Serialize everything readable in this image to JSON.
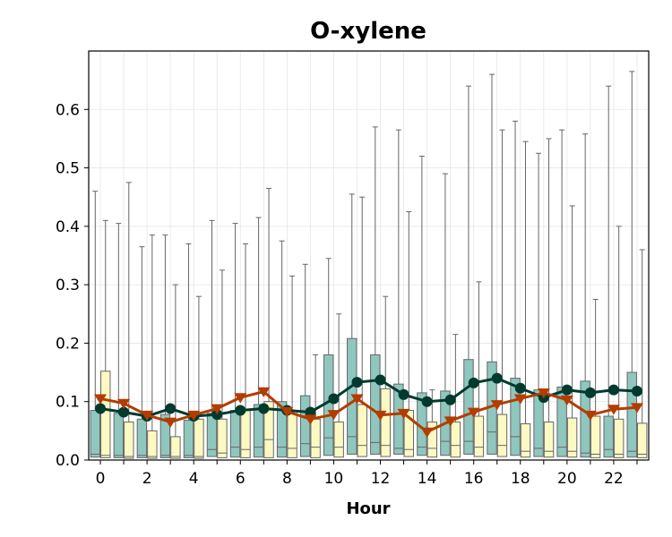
{
  "chart_data": {
    "type": "box+line",
    "title": "O-xylene",
    "xlabel": "Hour",
    "ylabel": "",
    "xlim": [
      -0.5,
      23.5
    ],
    "ylim": [
      0,
      0.7
    ],
    "x_ticks": [
      0,
      2,
      4,
      6,
      8,
      10,
      12,
      14,
      16,
      18,
      20,
      22
    ],
    "x_tick_labels": [
      "0",
      "2",
      "4",
      "6",
      "8",
      "10",
      "12",
      "14",
      "16",
      "18",
      "20",
      "22"
    ],
    "y_ticks": [
      0,
      0.1,
      0.2,
      0.3,
      0.4,
      0.5,
      0.6
    ],
    "y_tick_labels": [
      "0.0",
      "0.1",
      "0.2",
      "0.3",
      "0.4",
      "0.5",
      "0.6"
    ],
    "grid": true,
    "legend": "none",
    "hours": [
      0,
      1,
      2,
      3,
      4,
      5,
      6,
      7,
      8,
      9,
      10,
      11,
      12,
      13,
      14,
      15,
      16,
      17,
      18,
      19,
      20,
      21,
      22,
      23
    ],
    "series": [
      {
        "color": "#8fc7bf",
        "line_color": "#003a2e",
        "marker": "circle",
        "box_q1": [
          0.005,
          0.004,
          0.004,
          0.004,
          0.004,
          0.006,
          0.005,
          0.005,
          0.005,
          0.006,
          0.008,
          0.01,
          0.01,
          0.01,
          0.008,
          0.008,
          0.01,
          0.01,
          0.008,
          0.006,
          0.006,
          0.005,
          0.005,
          0.005
        ],
        "box_median": [
          0.01,
          0.008,
          0.008,
          0.008,
          0.008,
          0.018,
          0.022,
          0.022,
          0.022,
          0.028,
          0.038,
          0.04,
          0.03,
          0.02,
          0.022,
          0.032,
          0.032,
          0.048,
          0.04,
          0.02,
          0.022,
          0.012,
          0.018,
          0.015
        ],
        "box_q3": [
          0.085,
          0.08,
          0.07,
          0.078,
          0.068,
          0.08,
          0.085,
          0.095,
          0.1,
          0.11,
          0.18,
          0.208,
          0.18,
          0.13,
          0.115,
          0.118,
          0.172,
          0.168,
          0.14,
          0.12,
          0.125,
          0.135,
          0.075,
          0.15
        ],
        "whisker_high": [
          0.46,
          0.405,
          0.365,
          0.385,
          0.37,
          0.41,
          0.405,
          0.415,
          0.375,
          0.335,
          0.345,
          0.455,
          0.57,
          0.565,
          0.52,
          0.49,
          0.64,
          0.66,
          0.58,
          0.525,
          0.565,
          0.558,
          0.64,
          0.665
        ],
        "mean": [
          0.088,
          0.082,
          0.075,
          0.088,
          0.075,
          0.078,
          0.085,
          0.088,
          0.085,
          0.082,
          0.105,
          0.133,
          0.137,
          0.112,
          0.1,
          0.103,
          0.132,
          0.14,
          0.123,
          0.107,
          0.12,
          0.115,
          0.12,
          0.118
        ]
      },
      {
        "color": "#fdf9c3",
        "line_color": "#b33c00",
        "marker": "triangle-down",
        "box_q1": [
          0.004,
          0.003,
          0.003,
          0.003,
          0.003,
          0.004,
          0.004,
          0.004,
          0.004,
          0.004,
          0.005,
          0.006,
          0.006,
          0.006,
          0.005,
          0.005,
          0.006,
          0.006,
          0.005,
          0.005,
          0.005,
          0.004,
          0.004,
          0.004
        ],
        "box_median": [
          0.008,
          0.006,
          0.006,
          0.006,
          0.006,
          0.012,
          0.018,
          0.035,
          0.02,
          0.022,
          0.022,
          0.025,
          0.025,
          0.018,
          0.02,
          0.025,
          0.022,
          0.025,
          0.015,
          0.015,
          0.015,
          0.01,
          0.01,
          0.01
        ],
        "box_q3": [
          0.152,
          0.065,
          0.05,
          0.04,
          0.07,
          0.07,
          0.085,
          0.1,
          0.085,
          0.07,
          0.065,
          0.095,
          0.122,
          0.085,
          0.065,
          0.065,
          0.075,
          0.078,
          0.062,
          0.065,
          0.072,
          0.075,
          0.07,
          0.063
        ],
        "whisker_high": [
          0.41,
          0.475,
          0.385,
          0.3,
          0.28,
          0.325,
          0.37,
          0.465,
          0.315,
          0.18,
          0.25,
          0.45,
          0.28,
          0.425,
          0.12,
          0.215,
          0.305,
          0.565,
          0.545,
          0.55,
          0.435,
          0.275,
          0.4,
          0.36
        ],
        "mean": [
          0.105,
          0.097,
          0.077,
          0.065,
          0.077,
          0.088,
          0.107,
          0.117,
          0.083,
          0.07,
          0.078,
          0.105,
          0.077,
          0.08,
          0.048,
          0.067,
          0.082,
          0.095,
          0.105,
          0.115,
          0.103,
          0.077,
          0.087,
          0.09
        ]
      }
    ]
  }
}
